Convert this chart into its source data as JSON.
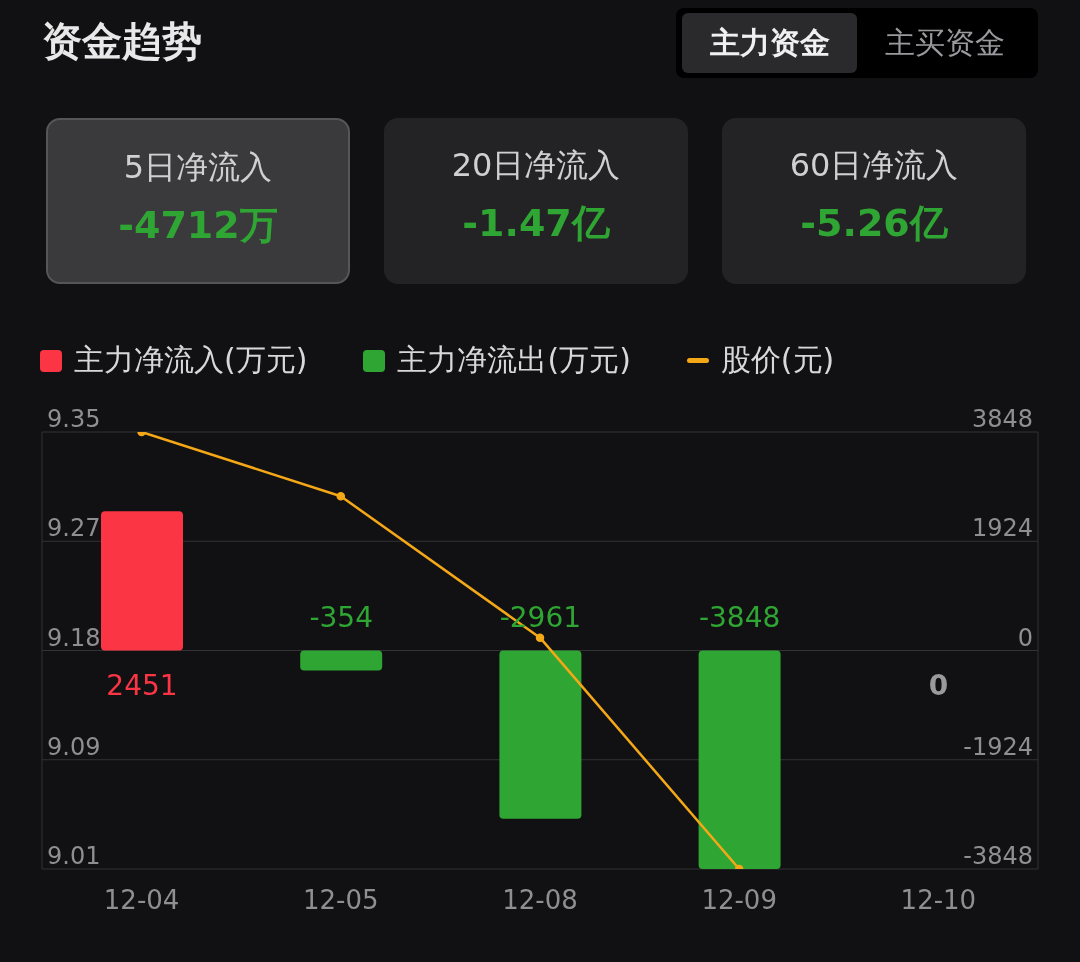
{
  "chart_data": {
    "type": "bar",
    "title": "资金趋势",
    "annotations": [
      "主力资金",
      "主买资金",
      "5日净流入",
      "-4712万",
      "20日净流入",
      "-1.47亿",
      "60日净流入",
      "-5.26亿",
      "0"
    ],
    "categories": [
      "12-04",
      "12-05",
      "12-08",
      "12-09",
      "12-10"
    ],
    "series": [
      {
        "name": "主力净流入(万元)",
        "axis": "y2",
        "color": "#fc3545",
        "values": [
          2451,
          null,
          null,
          null,
          null
        ],
        "value_labels": [
          "2451",
          null,
          null,
          null,
          null
        ]
      },
      {
        "name": "主力净流出(万元)",
        "axis": "y2",
        "color": "#2fa533",
        "values": [
          null,
          -354,
          -2961,
          -3848,
          null
        ],
        "value_labels": [
          null,
          "-354",
          "-2961",
          "-3848",
          null
        ]
      },
      {
        "name": "股价(元)",
        "type": "line",
        "color": "#f5a817",
        "values": [
          9.35,
          9.3,
          9.19,
          9.01,
          null
        ]
      }
    ],
    "stacked": true,
    "marker": "circle",
    "ylim": [
      9.01,
      9.35
    ],
    "yticks": [
      9.35,
      {
        "value": 9.265,
        "label": "9.27"
      },
      9.18,
      {
        "value": 9.095,
        "label": "9.09"
      },
      9.01
    ],
    "y2lim": [
      -3848,
      3848
    ],
    "y2ticks": [
      3848,
      1924,
      0,
      -1924,
      -3848
    ],
    "grid": "y",
    "legend": "top left"
  }
}
